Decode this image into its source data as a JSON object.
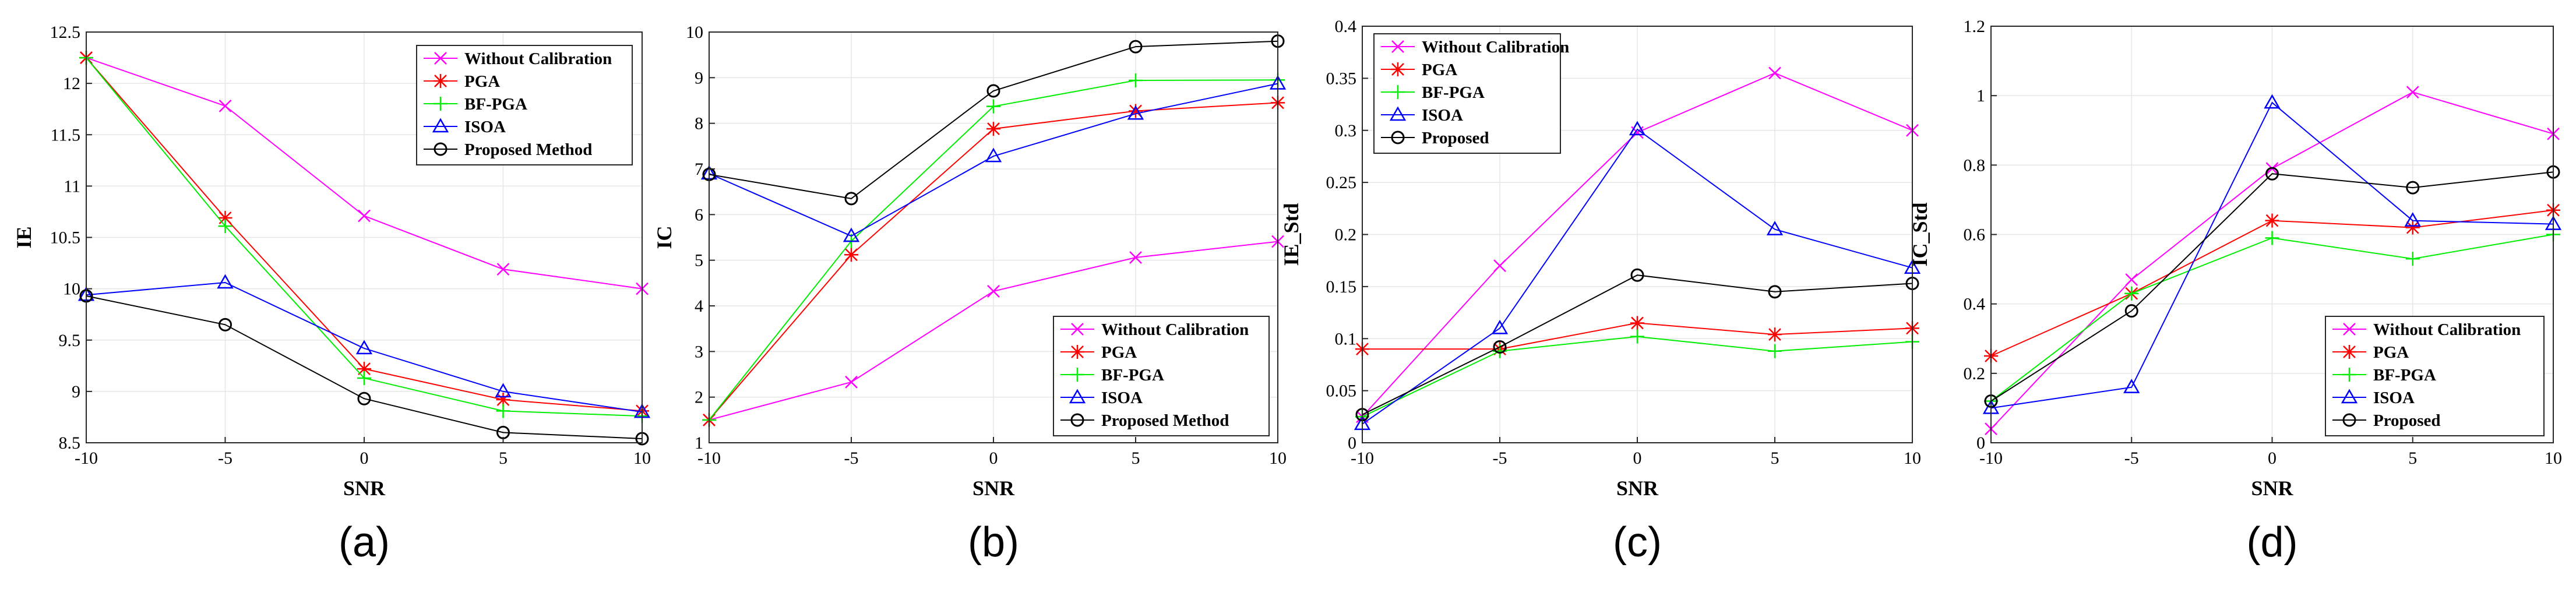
{
  "colors": {
    "Without Calibration": "#ff00ff",
    "PGA": "#ff0000",
    "BF-PGA": "#00ee00",
    "ISOA": "#0000ff",
    "Proposed Method": "#000000",
    "Proposed": "#000000",
    "grid": "#e6e6e6"
  },
  "chart_data": [
    {
      "type": "line",
      "subplot_label": "(a)",
      "xlabel": "SNR",
      "ylabel": "IE",
      "x": [
        -10,
        -5,
        0,
        5,
        10
      ],
      "xlim": [
        -10,
        10
      ],
      "ylim": [
        8.5,
        12.5
      ],
      "xticks": [
        "-10",
        "-5",
        "0",
        "5",
        "10"
      ],
      "yticks": [
        "8.5",
        "9",
        "9.5",
        "10",
        "10.5",
        "11",
        "11.5",
        "12",
        "12.5"
      ],
      "grid": true,
      "legend_position": "top-right",
      "series": [
        {
          "name": "Without Calibration",
          "marker": "x",
          "values": [
            12.25,
            11.78,
            10.71,
            10.19,
            10.0
          ]
        },
        {
          "name": "PGA",
          "marker": "*",
          "values": [
            12.25,
            10.69,
            9.22,
            8.92,
            8.81
          ]
        },
        {
          "name": "BF-PGA",
          "marker": "+",
          "values": [
            12.25,
            10.61,
            9.13,
            8.81,
            8.76
          ]
        },
        {
          "name": "ISOA",
          "marker": "triangle",
          "values": [
            9.94,
            10.06,
            9.42,
            9.0,
            8.8
          ]
        },
        {
          "name": "Proposed Method",
          "marker": "circle",
          "values": [
            9.93,
            9.65,
            8.93,
            8.6,
            8.54
          ]
        }
      ]
    },
    {
      "type": "line",
      "subplot_label": "(b)",
      "xlabel": "SNR",
      "ylabel": "IC",
      "x": [
        -10,
        -5,
        0,
        5,
        10
      ],
      "xlim": [
        -10,
        10
      ],
      "ylim": [
        1,
        10
      ],
      "xticks": [
        "-10",
        "-5",
        "0",
        "5",
        "10"
      ],
      "yticks": [
        "1",
        "2",
        "3",
        "4",
        "5",
        "6",
        "7",
        "8",
        "9",
        "10"
      ],
      "grid": true,
      "legend_position": "bottom-right",
      "series": [
        {
          "name": "Without Calibration",
          "marker": "x",
          "values": [
            1.5,
            2.33,
            4.32,
            5.06,
            5.41
          ]
        },
        {
          "name": "PGA",
          "marker": "*",
          "values": [
            1.5,
            5.12,
            7.88,
            8.27,
            8.45
          ]
        },
        {
          "name": "BF-PGA",
          "marker": "+",
          "values": [
            1.5,
            5.42,
            8.37,
            8.94,
            8.95
          ]
        },
        {
          "name": "ISOA",
          "marker": "triangle",
          "values": [
            6.9,
            5.53,
            7.28,
            8.21,
            8.87
          ]
        },
        {
          "name": "Proposed Method",
          "marker": "circle",
          "values": [
            6.88,
            6.35,
            8.71,
            9.68,
            9.8
          ]
        }
      ]
    },
    {
      "type": "line",
      "subplot_label": "(c)",
      "xlabel": "SNR",
      "ylabel": "IE_Std",
      "x": [
        -10,
        -5,
        0,
        5,
        10
      ],
      "xlim": [
        -10,
        10
      ],
      "ylim": [
        0,
        0.4
      ],
      "xticks": [
        "-10",
        "-5",
        "0",
        "5",
        "10"
      ],
      "yticks": [
        "0",
        "0.05",
        "0.1",
        "0.15",
        "0.2",
        "0.25",
        "0.3",
        "0.35",
        "0.4"
      ],
      "grid": true,
      "legend_position": "top-left",
      "series": [
        {
          "name": "Without Calibration",
          "marker": "x",
          "values": [
            0.025,
            0.17,
            0.298,
            0.355,
            0.3
          ]
        },
        {
          "name": "PGA",
          "marker": "*",
          "values": [
            0.09,
            0.09,
            0.115,
            0.104,
            0.11
          ]
        },
        {
          "name": "BF-PGA",
          "marker": "+",
          "values": [
            0.025,
            0.088,
            0.102,
            0.088,
            0.097
          ]
        },
        {
          "name": "ISOA",
          "marker": "triangle",
          "values": [
            0.018,
            0.11,
            0.301,
            0.205,
            0.168
          ]
        },
        {
          "name": "Proposed",
          "marker": "circle",
          "values": [
            0.027,
            0.092,
            0.161,
            0.145,
            0.153
          ]
        }
      ]
    },
    {
      "type": "line",
      "subplot_label": "(d)",
      "xlabel": "SNR",
      "ylabel": "IC_Std",
      "x": [
        -10,
        -5,
        0,
        5,
        10
      ],
      "xlim": [
        -10,
        10
      ],
      "ylim": [
        0,
        1.2
      ],
      "xticks": [
        "-10",
        "-5",
        "0",
        "5",
        "10"
      ],
      "yticks": [
        "0",
        "0.2",
        "0.4",
        "0.6",
        "0.8",
        "1",
        "1.2"
      ],
      "grid": true,
      "legend_position": "bottom-right",
      "series": [
        {
          "name": "Without Calibration",
          "marker": "x",
          "values": [
            0.04,
            0.47,
            0.79,
            1.01,
            0.89
          ]
        },
        {
          "name": "PGA",
          "marker": "*",
          "values": [
            0.25,
            0.43,
            0.64,
            0.62,
            0.67
          ]
        },
        {
          "name": "BF-PGA",
          "marker": "+",
          "values": [
            0.12,
            0.43,
            0.59,
            0.53,
            0.6
          ]
        },
        {
          "name": "ISOA",
          "marker": "triangle",
          "values": [
            0.1,
            0.16,
            0.98,
            0.64,
            0.63
          ]
        },
        {
          "name": "Proposed",
          "marker": "circle",
          "values": [
            0.12,
            0.38,
            0.775,
            0.735,
            0.78
          ]
        }
      ]
    }
  ]
}
